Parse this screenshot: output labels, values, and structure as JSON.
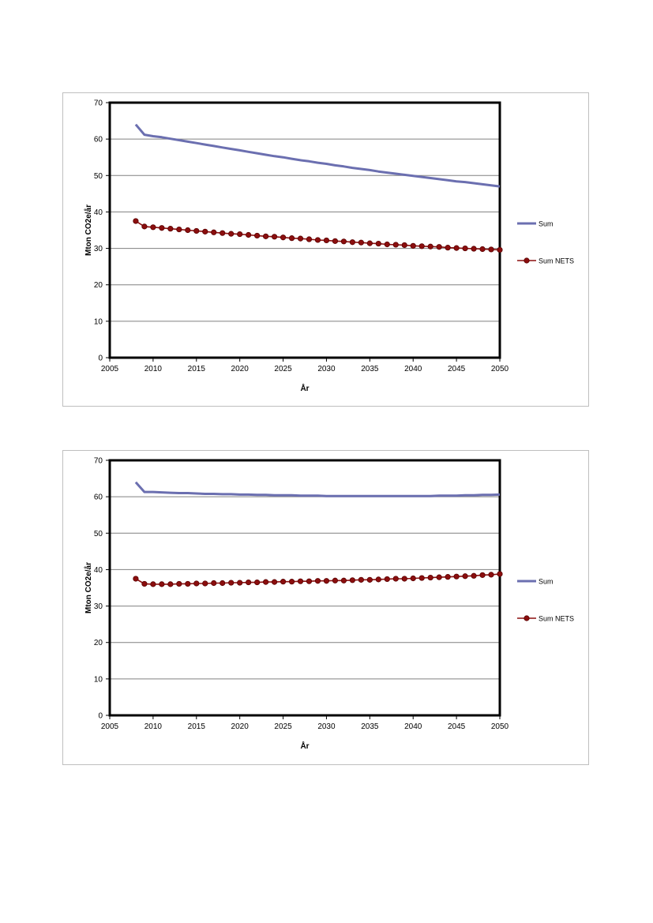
{
  "colors": {
    "sum": "#6b6fb0",
    "sum_nets": "#8b0e0e",
    "sum_nets_marker_stroke": "#5a0000",
    "grid": "#808080"
  },
  "chart_data": [
    {
      "type": "line",
      "xlabel": "År",
      "ylabel": "Mton CO2e/år",
      "xlim": [
        2005,
        2050
      ],
      "ylim": [
        0,
        70
      ],
      "xticks": [
        "2005",
        "2010",
        "2015",
        "2020",
        "2025",
        "2030",
        "2035",
        "2040",
        "2045",
        "2050"
      ],
      "yticks": [
        "0",
        "10",
        "20",
        "30",
        "40",
        "50",
        "60",
        "70"
      ],
      "grid": "horizontal",
      "legend_position": "right",
      "x": [
        2008,
        2009,
        2010,
        2011,
        2012,
        2013,
        2014,
        2015,
        2016,
        2017,
        2018,
        2019,
        2020,
        2021,
        2022,
        2023,
        2024,
        2025,
        2026,
        2027,
        2028,
        2029,
        2030,
        2031,
        2032,
        2033,
        2034,
        2035,
        2036,
        2037,
        2038,
        2039,
        2040,
        2041,
        2042,
        2043,
        2044,
        2045,
        2046,
        2047,
        2048,
        2049,
        2050
      ],
      "series": [
        {
          "name": "Sum",
          "marker": "none",
          "values": [
            64.0,
            61.2,
            60.8,
            60.5,
            60.1,
            59.7,
            59.3,
            58.9,
            58.5,
            58.1,
            57.7,
            57.3,
            56.9,
            56.5,
            56.1,
            55.7,
            55.3,
            55.0,
            54.6,
            54.2,
            53.9,
            53.5,
            53.2,
            52.8,
            52.5,
            52.1,
            51.8,
            51.5,
            51.1,
            50.8,
            50.5,
            50.2,
            49.9,
            49.6,
            49.3,
            49.0,
            48.7,
            48.4,
            48.2,
            47.9,
            47.6,
            47.3,
            47.0
          ]
        },
        {
          "name": "Sum NETS",
          "marker": "circle",
          "values": [
            37.5,
            36.0,
            35.8,
            35.6,
            35.4,
            35.2,
            35.0,
            34.8,
            34.6,
            34.4,
            34.2,
            34.0,
            33.9,
            33.7,
            33.5,
            33.3,
            33.2,
            33.0,
            32.8,
            32.7,
            32.5,
            32.3,
            32.2,
            32.0,
            31.9,
            31.7,
            31.6,
            31.4,
            31.3,
            31.1,
            31.0,
            30.9,
            30.7,
            30.6,
            30.5,
            30.4,
            30.2,
            30.1,
            30.0,
            29.9,
            29.8,
            29.7,
            29.6
          ]
        }
      ]
    },
    {
      "type": "line",
      "xlabel": "År",
      "ylabel": "Mton CO2e/år",
      "xlim": [
        2005,
        2050
      ],
      "ylim": [
        0,
        70
      ],
      "xticks": [
        "2005",
        "2010",
        "2015",
        "2020",
        "2025",
        "2030",
        "2035",
        "2040",
        "2045",
        "2050"
      ],
      "yticks": [
        "0",
        "10",
        "20",
        "30",
        "40",
        "50",
        "60",
        "70"
      ],
      "grid": "horizontal",
      "legend_position": "right",
      "x": [
        2008,
        2009,
        2010,
        2011,
        2012,
        2013,
        2014,
        2015,
        2016,
        2017,
        2018,
        2019,
        2020,
        2021,
        2022,
        2023,
        2024,
        2025,
        2026,
        2027,
        2028,
        2029,
        2030,
        2031,
        2032,
        2033,
        2034,
        2035,
        2036,
        2037,
        2038,
        2039,
        2040,
        2041,
        2042,
        2043,
        2044,
        2045,
        2046,
        2047,
        2048,
        2049,
        2050
      ],
      "series": [
        {
          "name": "Sum",
          "marker": "none",
          "values": [
            64.0,
            61.3,
            61.3,
            61.2,
            61.1,
            61.0,
            61.0,
            60.9,
            60.8,
            60.8,
            60.7,
            60.7,
            60.6,
            60.6,
            60.5,
            60.5,
            60.4,
            60.4,
            60.4,
            60.3,
            60.3,
            60.3,
            60.2,
            60.2,
            60.2,
            60.2,
            60.2,
            60.2,
            60.2,
            60.2,
            60.2,
            60.2,
            60.2,
            60.2,
            60.2,
            60.3,
            60.3,
            60.3,
            60.4,
            60.4,
            60.5,
            60.5,
            60.6
          ]
        },
        {
          "name": "Sum NETS",
          "marker": "circle",
          "values": [
            37.5,
            36.1,
            36.0,
            36.0,
            36.0,
            36.1,
            36.1,
            36.2,
            36.2,
            36.3,
            36.3,
            36.4,
            36.4,
            36.5,
            36.5,
            36.6,
            36.6,
            36.7,
            36.7,
            36.8,
            36.8,
            36.9,
            36.9,
            37.0,
            37.0,
            37.1,
            37.2,
            37.2,
            37.3,
            37.4,
            37.5,
            37.5,
            37.6,
            37.7,
            37.8,
            37.9,
            38.0,
            38.1,
            38.2,
            38.3,
            38.5,
            38.6,
            38.8
          ]
        }
      ]
    }
  ]
}
